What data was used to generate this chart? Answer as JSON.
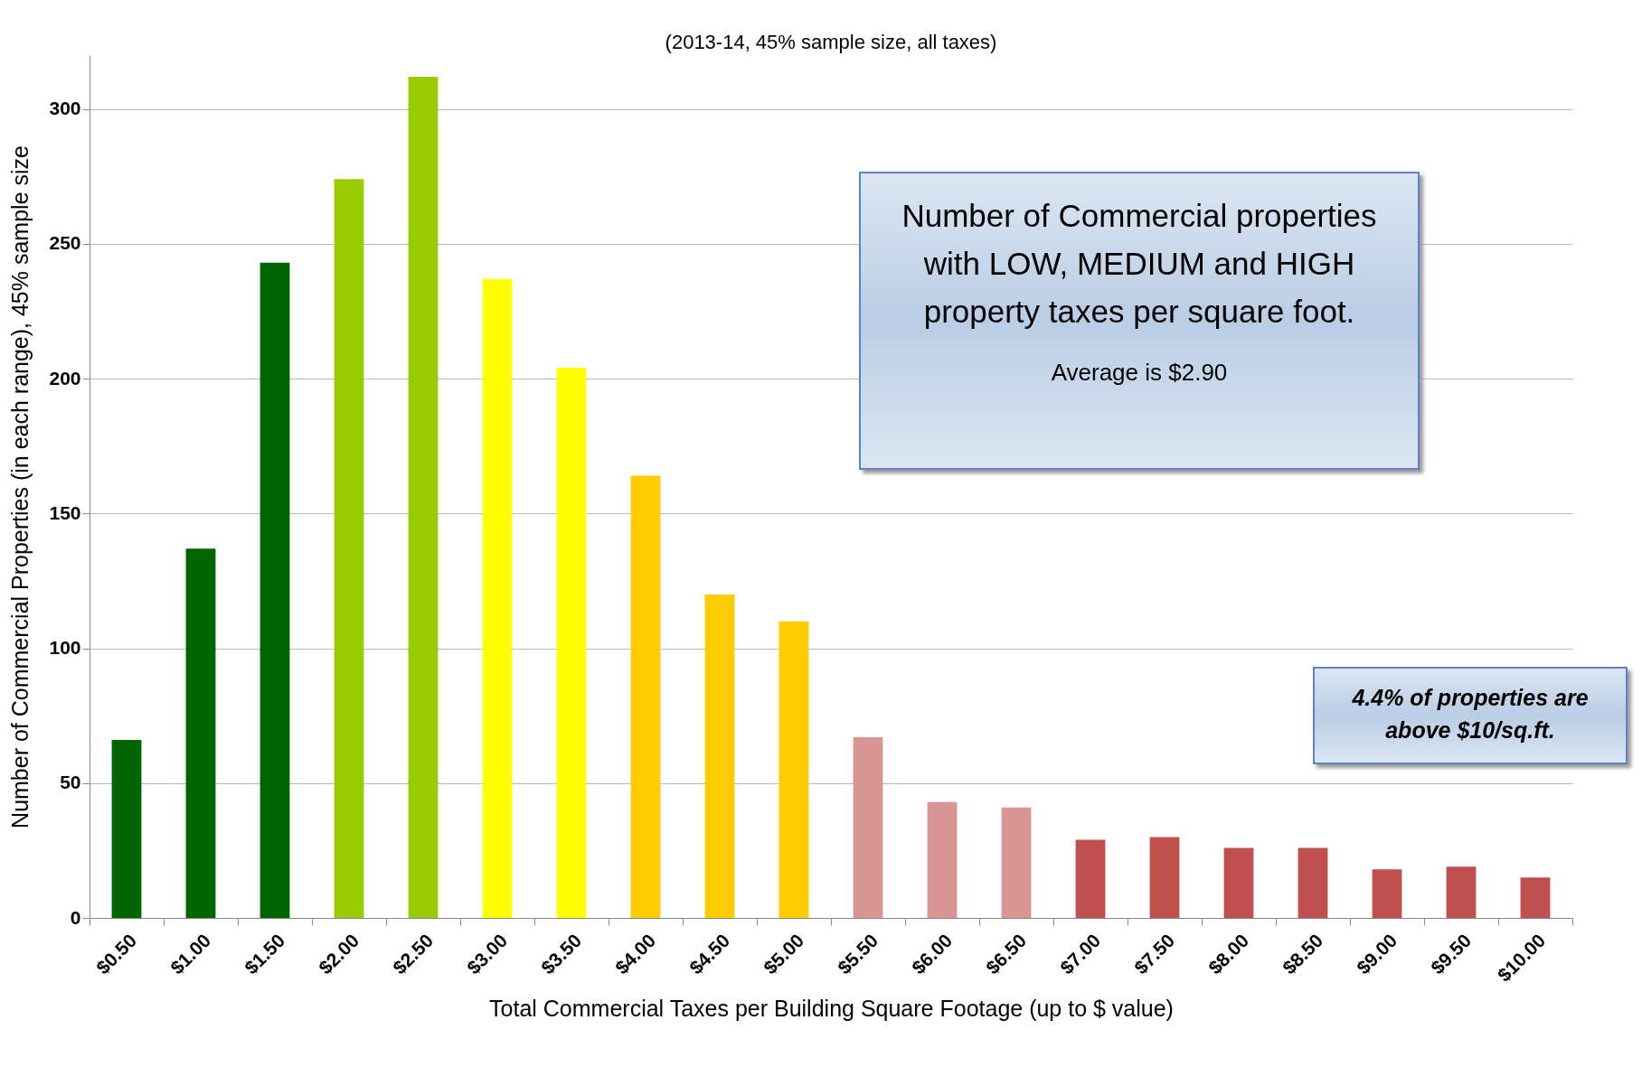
{
  "chart_data": {
    "type": "bar",
    "subtitle": "(2013-14, 45% sample size, all taxes)",
    "xlabel": "Total Commercial Taxes per Building Square Footage (up to $ value)",
    "ylabel": "Number of Commercial Properties (in each range),  45% sample size",
    "categories": [
      "$0.50",
      "$1.00",
      "$1.50",
      "$2.00",
      "$2.50",
      "$3.00",
      "$3.50",
      "$4.00",
      "$4.50",
      "$5.00",
      "$5.50",
      "$6.00",
      "$6.50",
      "$7.00",
      "$7.50",
      "$8.00",
      "$8.50",
      "$9.00",
      "$9.50",
      "$10.00"
    ],
    "values": [
      66,
      137,
      243,
      274,
      312,
      237,
      204,
      164,
      120,
      110,
      67,
      43,
      41,
      29,
      30,
      26,
      26,
      18,
      19,
      15
    ],
    "colors": [
      "#006400",
      "#006400",
      "#006400",
      "#99cc00",
      "#99cc00",
      "#ffff00",
      "#ffff00",
      "#ffcc00",
      "#ffcc00",
      "#ffcc00",
      "#d99594",
      "#d99594",
      "#d99594",
      "#c0504d",
      "#c0504d",
      "#c0504d",
      "#c0504d",
      "#c0504d",
      "#c0504d",
      "#c0504d"
    ],
    "ylim": [
      0,
      320
    ],
    "yticks": [
      0,
      50,
      100,
      150,
      200,
      250,
      300
    ],
    "grid": "y",
    "annotations": [
      "Number of Commercial properties with LOW, MEDIUM and HIGH property taxes per square foot.",
      "Average is $2.90",
      "4.4% of properties are above $10/sq.ft."
    ]
  }
}
